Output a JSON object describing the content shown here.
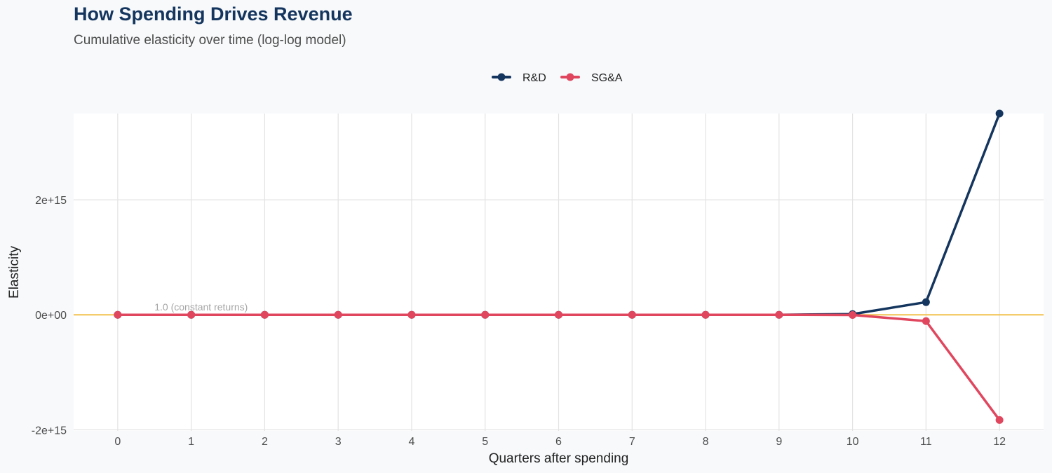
{
  "chart_data": {
    "type": "line",
    "title": "How Spending Drives Revenue",
    "subtitle": "Cumulative elasticity over time (log-log model)",
    "xlabel": "Quarters after spending",
    "ylabel": "Elasticity",
    "x": [
      0,
      1,
      2,
      3,
      4,
      5,
      6,
      7,
      8,
      9,
      10,
      11,
      12
    ],
    "x_ticks": [
      "0",
      "1",
      "2",
      "3",
      "4",
      "5",
      "6",
      "7",
      "8",
      "9",
      "10",
      "11",
      "12"
    ],
    "y_ticks": [
      {
        "value": -2000000000000000.0,
        "label": "-2e+15"
      },
      {
        "value": 0,
        "label": "0e+00"
      },
      {
        "value": 2000000000000000.0,
        "label": "2e+15"
      }
    ],
    "xlim": [
      -0.6,
      12.6
    ],
    "ylim": [
      -2020000000000000.0,
      3500000000000000.0
    ],
    "series": [
      {
        "name": "R&D",
        "color": "#14355e",
        "values": [
          1,
          1.1,
          1.2,
          1.3,
          1.4,
          1.5,
          1.6,
          1.7,
          2,
          100000000000,
          12000000000000,
          220000000000000,
          3500000000000000
        ]
      },
      {
        "name": "SG&A",
        "color": "#e0475f",
        "values": [
          1,
          1.05,
          1.1,
          1.15,
          1.2,
          1.25,
          1.3,
          1.35,
          1.4,
          -50000000000,
          -3000000000000,
          -110000000000000,
          -1830000000000000
        ]
      }
    ],
    "reference_line": {
      "value": 1,
      "label": "1.0 (constant returns)",
      "color": "#f2c24f"
    },
    "grid": true,
    "legend_position": "top"
  }
}
